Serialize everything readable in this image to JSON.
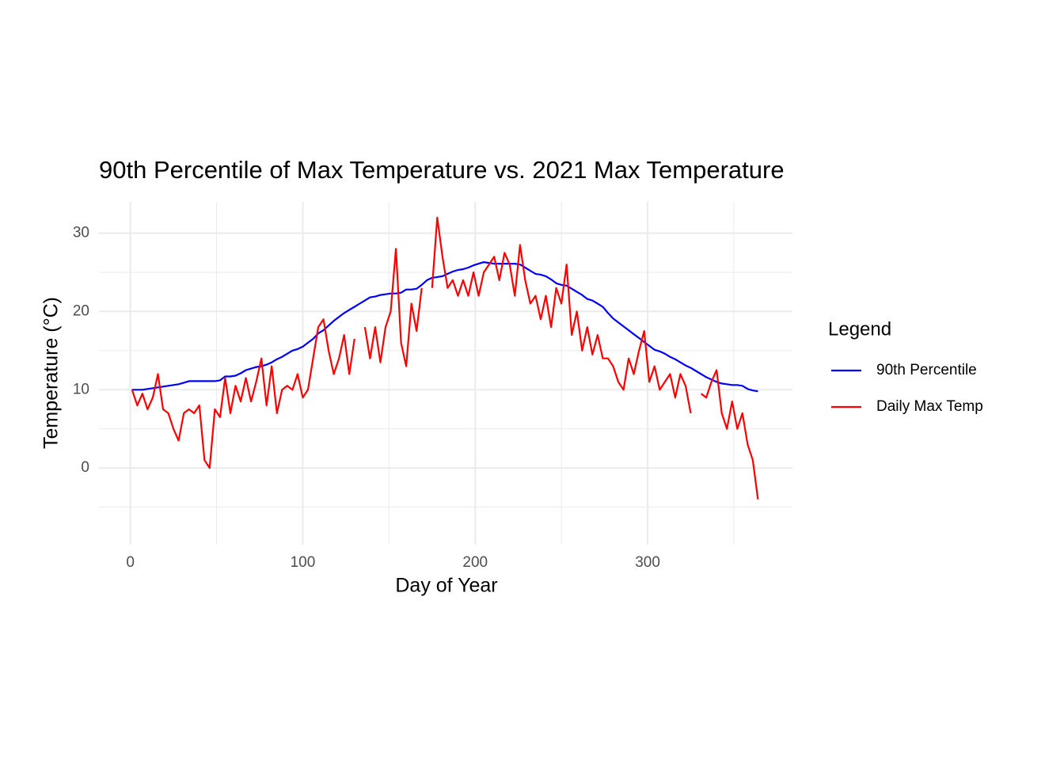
{
  "chart_data": {
    "type": "line",
    "title": "90th Percentile of Max Temperature vs. 2021 Max Temperature",
    "x_label": "Day of Year",
    "y_label": "Temperature (°C)",
    "legend_title": "Legend",
    "legend_position": "right",
    "grid": true,
    "xlim": [
      -18.2,
      384
    ],
    "ylim": [
      -9.8,
      34.0
    ],
    "xticks": [
      0,
      100,
      200,
      300
    ],
    "yticks": [
      0,
      10,
      20,
      30
    ],
    "minor_xticks": [
      50,
      150,
      250,
      350
    ],
    "minor_yticks": [
      -5,
      5,
      15,
      25
    ],
    "x": [
      1,
      4,
      7,
      10,
      13,
      16,
      19,
      22,
      25,
      28,
      31,
      34,
      37,
      40,
      43,
      46,
      49,
      52,
      55,
      58,
      61,
      64,
      67,
      70,
      73,
      76,
      79,
      82,
      85,
      88,
      91,
      94,
      97,
      100,
      103,
      106,
      109,
      112,
      115,
      118,
      121,
      124,
      127,
      130,
      133,
      136,
      139,
      142,
      145,
      148,
      151,
      154,
      157,
      160,
      163,
      166,
      169,
      172,
      175,
      178,
      181,
      184,
      187,
      190,
      193,
      196,
      199,
      202,
      205,
      208,
      211,
      214,
      217,
      220,
      223,
      226,
      229,
      232,
      235,
      238,
      241,
      244,
      247,
      250,
      253,
      256,
      259,
      262,
      265,
      268,
      271,
      274,
      277,
      280,
      283,
      286,
      289,
      292,
      295,
      298,
      301,
      304,
      307,
      310,
      313,
      316,
      319,
      322,
      325,
      328,
      331,
      334,
      337,
      340,
      343,
      346,
      349,
      352,
      355,
      358,
      361,
      364
    ],
    "series": [
      {
        "name": "90th Percentile",
        "color": "#0000ff",
        "values": [
          10,
          10,
          10,
          10.1,
          10.2,
          10.3,
          10.4,
          10.5,
          10.6,
          10.7,
          10.9,
          11.1,
          11.1,
          11.1,
          11.1,
          11.1,
          11.1,
          11.2,
          11.7,
          11.7,
          11.8,
          12.1,
          12.5,
          12.7,
          12.9,
          13,
          13.2,
          13.5,
          13.9,
          14.2,
          14.6,
          15,
          15.2,
          15.5,
          16,
          16.5,
          17.2,
          17.6,
          18.2,
          18.8,
          19.3,
          19.8,
          20.2,
          20.6,
          21,
          21.4,
          21.8,
          21.9,
          22.1,
          22.2,
          22.3,
          22.3,
          22.4,
          22.8,
          22.8,
          22.9,
          23.4,
          24,
          24.3,
          24.4,
          24.5,
          24.8,
          25.1,
          25.3,
          25.4,
          25.6,
          25.9,
          26.1,
          26.3,
          26.2,
          26.1,
          26.1,
          26.1,
          26.1,
          26.1,
          26,
          25.6,
          25.2,
          24.8,
          24.7,
          24.5,
          24.1,
          23.6,
          23.4,
          23.3,
          22.9,
          22.5,
          22.1,
          21.6,
          21.4,
          21,
          20.6,
          19.8,
          19.1,
          18.6,
          18.1,
          17.6,
          17.1,
          16.6,
          16.1,
          15.6,
          15.1,
          14.9,
          14.6,
          14.2,
          13.9,
          13.5,
          13.1,
          12.8,
          12.4,
          12,
          11.6,
          11.3,
          11,
          10.8,
          10.7,
          10.6,
          10.6,
          10.5,
          10.1,
          9.9,
          9.8
        ]
      },
      {
        "name": "Daily Max Temp",
        "color": "#ff0000",
        "values": [
          10,
          8,
          9.5,
          7.5,
          9,
          12,
          7.5,
          7,
          5,
          3.5,
          7,
          7.5,
          7,
          8,
          1,
          0,
          7.5,
          6.5,
          11.5,
          7,
          10.5,
          8.5,
          11.5,
          8.5,
          11,
          14,
          8,
          13,
          7,
          10,
          10.5,
          10,
          12,
          9,
          10,
          14,
          18,
          19,
          15,
          12,
          14,
          17,
          12,
          16.5,
          null,
          18,
          14,
          18,
          13.5,
          18,
          20,
          28,
          16,
          13,
          21,
          17.5,
          23,
          null,
          23,
          32,
          27,
          23,
          24,
          22,
          24,
          22,
          25,
          22,
          25,
          26,
          27,
          24,
          27.5,
          26,
          22,
          28.5,
          24,
          21,
          22,
          19,
          22,
          18,
          23,
          21,
          26,
          17,
          20,
          15,
          18,
          14.5,
          17,
          14,
          14,
          13,
          11,
          10,
          14,
          12,
          15,
          17.5,
          11,
          13,
          10,
          11,
          12,
          9,
          12,
          10.5,
          7,
          null,
          9.5,
          9,
          11,
          12.5,
          7,
          5,
          8.5,
          5,
          7,
          3,
          1,
          -4
        ]
      }
    ]
  }
}
